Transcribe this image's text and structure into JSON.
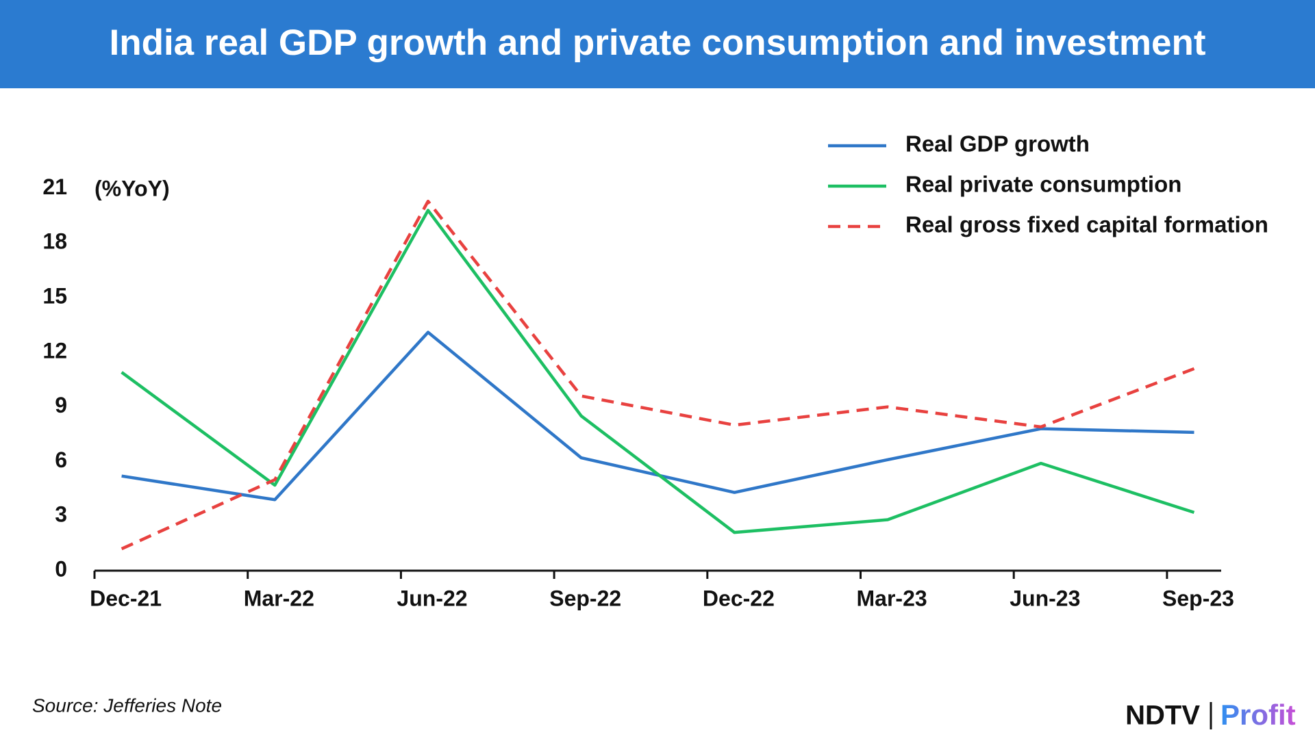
{
  "chart_data": {
    "type": "line",
    "title": "India real GDP growth and private consumption and investment",
    "y_label": "(%YoY)",
    "categories": [
      "Dec-21",
      "Mar-22",
      "Jun-22",
      "Sep-22",
      "Dec-22",
      "Mar-23",
      "Jun-23",
      "Sep-23"
    ],
    "series": [
      {
        "name": "Real GDP growth",
        "color": "#2f77c8",
        "dashed": false,
        "values": [
          5.2,
          3.9,
          13.1,
          6.2,
          4.3,
          6.1,
          7.8,
          7.6
        ]
      },
      {
        "name": "Real private consumption",
        "color": "#1dbf63",
        "dashed": false,
        "values": [
          10.9,
          4.7,
          19.8,
          8.5,
          2.1,
          2.8,
          5.9,
          3.2
        ]
      },
      {
        "name": "Real gross fixed capital formation",
        "color": "#e8413f",
        "dashed": true,
        "values": [
          1.2,
          5.0,
          20.3,
          9.6,
          8.0,
          9.0,
          7.9,
          11.1
        ]
      }
    ],
    "ylim": [
      0,
      21
    ],
    "yticks": [
      0,
      3,
      6,
      9,
      12,
      15,
      18,
      21
    ],
    "grid": false,
    "legend": "top-right",
    "source": "Source: Jefferies Note",
    "logo": {
      "brand": "NDTV",
      "product": "Profit"
    }
  }
}
